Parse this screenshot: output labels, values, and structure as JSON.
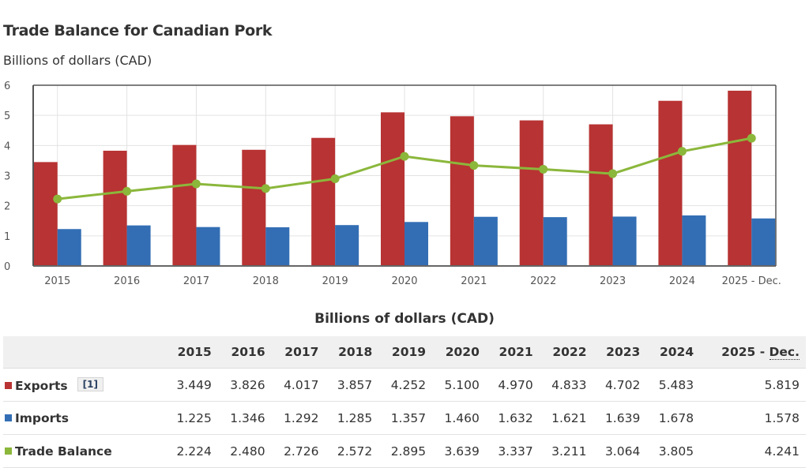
{
  "page": {
    "title": "Trade Balance for Canadian Pork",
    "subtitle": "Billions of dollars (CAD)"
  },
  "colors": {
    "exports": "#b83333",
    "imports": "#336eb4",
    "trade_balance": "#8bb73b"
  },
  "chart_data": {
    "type": "bar",
    "title": "Trade Balance for Canadian Pork",
    "ylabel": "Billions of dollars (CAD)",
    "xlabel": "",
    "ylim": [
      0,
      6
    ],
    "yticks": [
      "0",
      "1",
      "2",
      "3",
      "4",
      "5",
      "6"
    ],
    "grid": true,
    "categories": [
      "2015",
      "2016",
      "2017",
      "2018",
      "2019",
      "2020",
      "2021",
      "2022",
      "2023",
      "2024",
      "2025 - Dec."
    ],
    "series": [
      {
        "name": "Exports",
        "type": "bar",
        "values": [
          3.449,
          3.826,
          4.017,
          3.857,
          4.252,
          5.1,
          4.97,
          4.833,
          4.702,
          5.483,
          5.819
        ]
      },
      {
        "name": "Imports",
        "type": "bar",
        "values": [
          1.225,
          1.346,
          1.292,
          1.285,
          1.357,
          1.46,
          1.632,
          1.621,
          1.639,
          1.678,
          1.578
        ]
      },
      {
        "name": "Trade Balance",
        "type": "line",
        "values": [
          2.224,
          2.48,
          2.726,
          2.572,
          2.895,
          3.639,
          3.337,
          3.211,
          3.064,
          3.805,
          4.241
        ]
      }
    ]
  },
  "table": {
    "caption": "Billions of dollars (CAD)",
    "columns": [
      "2015",
      "2016",
      "2017",
      "2018",
      "2019",
      "2020",
      "2021",
      "2022",
      "2023",
      "2024"
    ],
    "last_column_prefix": "2025 - ",
    "last_column_abbr": "Dec.",
    "rows": [
      {
        "label": "Exports",
        "footnote": "[1]",
        "values": [
          "3.449",
          "3.826",
          "4.017",
          "3.857",
          "4.252",
          "5.100",
          "4.970",
          "4.833",
          "4.702",
          "5.483",
          "5.819"
        ]
      },
      {
        "label": "Imports",
        "values": [
          "1.225",
          "1.346",
          "1.292",
          "1.285",
          "1.357",
          "1.460",
          "1.632",
          "1.621",
          "1.639",
          "1.678",
          "1.578"
        ]
      },
      {
        "label": "Trade Balance",
        "values": [
          "2.224",
          "2.480",
          "2.726",
          "2.572",
          "2.895",
          "3.639",
          "3.337",
          "3.211",
          "3.064",
          "3.805",
          "4.241"
        ]
      }
    ]
  }
}
